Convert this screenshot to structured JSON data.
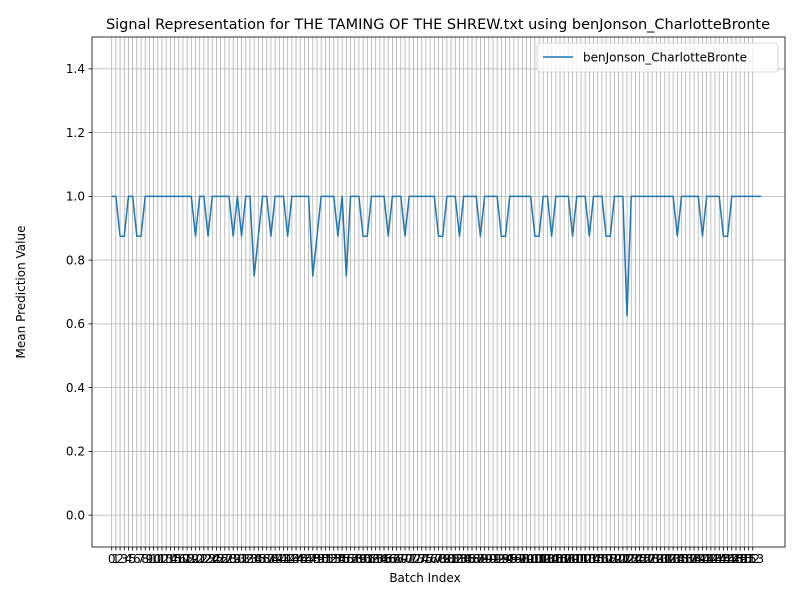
{
  "chart_data": {
    "type": "line",
    "title": "Signal Representation for THE TAMING OF THE SHREW.txt using benJonson_CharlotteBronte",
    "xlabel": "Batch Index",
    "ylabel": "Mean Prediction Value",
    "xlim": [
      -4.7,
      160.7
    ],
    "ylim": [
      -0.1,
      1.5
    ],
    "yticks": [
      0.0,
      0.2,
      0.4,
      0.6,
      0.8,
      1.0,
      1.2,
      1.4
    ],
    "x_first": 0,
    "x_last": 153,
    "grid": true,
    "legend": "upper right",
    "series": [
      {
        "name": "benJonson_CharlotteBronte",
        "color": "#1f77b4",
        "values": [
          1,
          1,
          0.875,
          0.875,
          1,
          1,
          0.875,
          0.875,
          1,
          1,
          1,
          1,
          1,
          1,
          1,
          1,
          1,
          1,
          1,
          1,
          0.875,
          1,
          1,
          0.875,
          1,
          1,
          1,
          1,
          1,
          0.875,
          1,
          0.875,
          1,
          1,
          0.75,
          0.875,
          1,
          1,
          0.875,
          1,
          1,
          1,
          0.875,
          1,
          1,
          1,
          1,
          1,
          0.75,
          0.875,
          1,
          1,
          1,
          1,
          0.875,
          1,
          0.75,
          1,
          1,
          1,
          0.875,
          0.875,
          1,
          1,
          1,
          1,
          0.875,
          1,
          1,
          1,
          0.875,
          1,
          1,
          1,
          1,
          1,
          1,
          1,
          0.875,
          0.875,
          1,
          1,
          1,
          0.875,
          1,
          1,
          1,
          1,
          0.875,
          1,
          1,
          1,
          1,
          0.875,
          0.875,
          1,
          1,
          1,
          1,
          1,
          1,
          0.875,
          0.875,
          1,
          1,
          0.875,
          1,
          1,
          1,
          1,
          0.875,
          1,
          1,
          1,
          0.875,
          1,
          1,
          1,
          0.875,
          0.875,
          1,
          1,
          1,
          0.625,
          1,
          1,
          1,
          1,
          1,
          1,
          1,
          1,
          1,
          1,
          1,
          0.875,
          1,
          1,
          1,
          1,
          1,
          0.875,
          1,
          1,
          1,
          1,
          0.875,
          0.875,
          1,
          1,
          1,
          1,
          1,
          1,
          1,
          1
        ]
      }
    ]
  }
}
